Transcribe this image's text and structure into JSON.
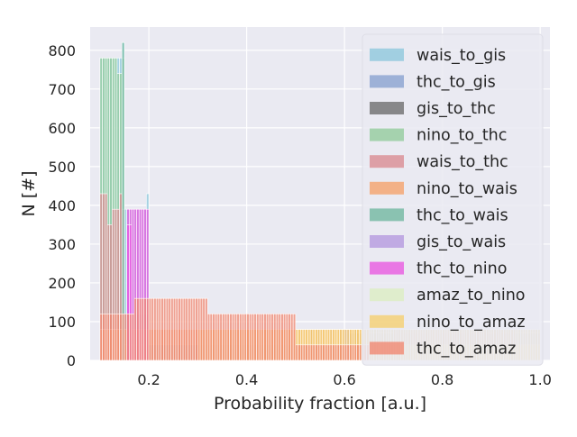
{
  "chart_data": {
    "type": "bar",
    "subtype": "overlaid-histogram",
    "title": "",
    "xlabel": "Probability fraction [a.u.]",
    "ylabel": "N [#]",
    "xlim": [
      0.08,
      1.02
    ],
    "ylim": [
      0,
      860
    ],
    "xticks": [
      "0.2",
      "0.4",
      "0.6",
      "0.8",
      "1.0"
    ],
    "yticks": [
      "0",
      "100",
      "200",
      "300",
      "400",
      "500",
      "600",
      "700",
      "800"
    ],
    "grid": true,
    "background": "#eaeaf2",
    "legend_position": "upper right",
    "bin_width": 0.005,
    "series": [
      {
        "name": "wais_to_gis",
        "color": "#8ec8dc",
        "segments": [
          {
            "x0": 0.1,
            "x1": 0.15,
            "y": 780
          },
          {
            "x0": 0.145,
            "x1": 0.15,
            "y": 820
          },
          {
            "x0": 0.15,
            "x1": 0.2,
            "y": 390
          },
          {
            "x0": 0.195,
            "x1": 0.2,
            "y": 430
          },
          {
            "x0": 0.2,
            "x1": 0.64,
            "y": 40
          },
          {
            "x0": 0.64,
            "x1": 1.0,
            "y": 80
          }
        ]
      },
      {
        "name": "thc_to_gis",
        "color": "#8aa2d0",
        "segments": [
          {
            "x0": 0.1,
            "x1": 0.2,
            "y": 120
          },
          {
            "x0": 0.2,
            "x1": 0.6,
            "y": 40
          },
          {
            "x0": 0.59,
            "x1": 0.61,
            "y": 80
          },
          {
            "x0": 0.6,
            "x1": 1.0,
            "y": 70
          }
        ]
      },
      {
        "name": "gis_to_thc",
        "color": "#6e6e6e",
        "segments": [
          {
            "x0": 0.53,
            "x1": 0.535,
            "y": 80
          },
          {
            "x0": 0.545,
            "x1": 0.55,
            "y": 80
          },
          {
            "x0": 0.57,
            "x1": 0.575,
            "y": 80
          },
          {
            "x0": 0.62,
            "x1": 0.625,
            "y": 80
          }
        ]
      },
      {
        "name": "nino_to_thc",
        "color": "#94cc9c",
        "segments": [
          {
            "x0": 0.1,
            "x1": 0.135,
            "y": 780
          },
          {
            "x0": 0.135,
            "x1": 0.145,
            "y": 740
          },
          {
            "x0": 0.145,
            "x1": 0.15,
            "y": 780
          },
          {
            "x0": 0.15,
            "x1": 0.2,
            "y": 40
          }
        ]
      },
      {
        "name": "wais_to_thc",
        "color": "#d98c92",
        "segments": [
          {
            "x0": 0.1,
            "x1": 0.115,
            "y": 430
          },
          {
            "x0": 0.115,
            "x1": 0.125,
            "y": 350
          },
          {
            "x0": 0.125,
            "x1": 0.14,
            "y": 390
          },
          {
            "x0": 0.14,
            "x1": 0.145,
            "y": 430
          },
          {
            "x0": 0.145,
            "x1": 0.15,
            "y": 390
          }
        ]
      },
      {
        "name": "nino_to_wais",
        "color": "#f5a36b",
        "segments": [
          {
            "x0": 0.1,
            "x1": 0.65,
            "y": 80
          },
          {
            "x0": 0.65,
            "x1": 1.0,
            "y": 40
          }
        ]
      },
      {
        "name": "thc_to_wais",
        "color": "#72b8a0",
        "segments": [
          {
            "x0": 0.145,
            "x1": 0.15,
            "y": 820
          }
        ]
      },
      {
        "name": "gis_to_wais",
        "color": "#b59ade",
        "segments": [
          {
            "x0": 0.6,
            "x1": 0.61,
            "y": 80
          },
          {
            "x0": 0.7,
            "x1": 0.95,
            "y": 80
          }
        ]
      },
      {
        "name": "thc_to_nino",
        "color": "#e85ae0",
        "segments": [
          {
            "x0": 0.155,
            "x1": 0.2,
            "y": 390
          },
          {
            "x0": 0.155,
            "x1": 0.165,
            "y": 350
          }
        ]
      },
      {
        "name": "amaz_to_nino",
        "color": "#dcedc2",
        "segments": [
          {
            "x0": 0.65,
            "x1": 1.0,
            "y": 40
          }
        ]
      },
      {
        "name": "nino_to_amaz",
        "color": "#f5d070",
        "segments": [
          {
            "x0": 0.3,
            "x1": 1.0,
            "y": 80
          }
        ]
      },
      {
        "name": "thc_to_amaz",
        "color": "#f08872",
        "segments": [
          {
            "x0": 0.1,
            "x1": 0.17,
            "y": 120
          },
          {
            "x0": 0.17,
            "x1": 0.32,
            "y": 160
          },
          {
            "x0": 0.32,
            "x1": 0.5,
            "y": 120
          },
          {
            "x0": 0.5,
            "x1": 0.65,
            "y": 40
          }
        ]
      }
    ]
  }
}
